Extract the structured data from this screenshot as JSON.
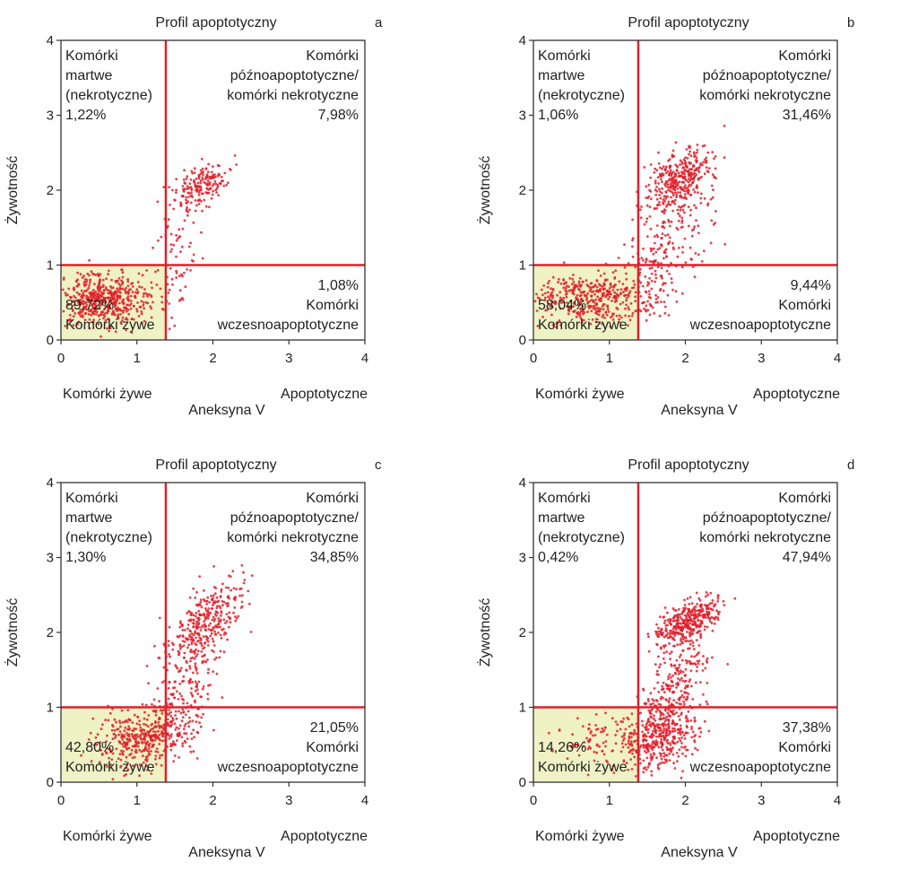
{
  "chart_data": [
    {
      "type": "scatter",
      "panel_label": "a",
      "title": "Profil apoptotyczny",
      "xlabel": "Aneksyna V",
      "ylabel": "Żywotność",
      "x_left_label": "Komórki żywe",
      "x_right_label": "Apoptotyczne",
      "xlim": [
        0,
        4
      ],
      "ylim": [
        0,
        4
      ],
      "xticks": [
        "0",
        "1",
        "2",
        "3",
        "4"
      ],
      "yticks": [
        "0",
        "1",
        "2",
        "3",
        "4"
      ],
      "gates": {
        "x": 1.38,
        "y": 1.0
      },
      "quadrants": {
        "top_left": {
          "label": [
            "Komórki",
            "martwe",
            "(nekrotyczne)"
          ],
          "percent": "1,22%"
        },
        "top_right": {
          "label": [
            "Komórki",
            "późnoapoptotyczne/",
            "komórki nekrotyczne"
          ],
          "percent": "7,98%"
        },
        "bottom_left": {
          "label": [
            "Komórki żywe"
          ],
          "percent": "89,72%"
        },
        "bottom_right": {
          "label": [
            "Komórki",
            "wczesnoapoptotyczne"
          ],
          "percent": "1,08%"
        }
      },
      "clusters": [
        {
          "cx": 0.55,
          "cy": 0.55,
          "sx": 0.32,
          "sy": 0.17,
          "n": 520,
          "rho": 0
        },
        {
          "cx": 1.85,
          "cy": 2.05,
          "sx": 0.18,
          "sy": 0.15,
          "n": 170,
          "rho": 0.5
        },
        {
          "cx": 1.5,
          "cy": 1.2,
          "sx": 0.15,
          "sy": 0.45,
          "n": 80,
          "rho": 0.3
        }
      ],
      "point_color": "#e0202a",
      "gate_color": "#e0202a",
      "live_region_color": "#eef2c4"
    },
    {
      "type": "scatter",
      "panel_label": "b",
      "title": "Profil apoptotyczny",
      "xlabel": "Aneksyna V",
      "ylabel": "Żywotność",
      "x_left_label": "Komórki żywe",
      "x_right_label": "Apoptotyczne",
      "xlim": [
        0,
        4
      ],
      "ylim": [
        0,
        4
      ],
      "xticks": [
        "0",
        "1",
        "2",
        "3",
        "4"
      ],
      "yticks": [
        "0",
        "1",
        "2",
        "3",
        "4"
      ],
      "gates": {
        "x": 1.38,
        "y": 1.0
      },
      "quadrants": {
        "top_left": {
          "label": [
            "Komórki",
            "martwe",
            "(nekrotyczne)"
          ],
          "percent": "1,06%"
        },
        "top_right": {
          "label": [
            "Komórki",
            "późnoapoptotyczne/",
            "komórki nekrotyczne"
          ],
          "percent": "31,46%"
        },
        "bottom_left": {
          "label": [
            "Komórki żywe"
          ],
          "percent": "58,04%"
        },
        "bottom_right": {
          "label": [
            "Komórki",
            "wczesnoapoptotyczne"
          ],
          "percent": "9,44%"
        }
      },
      "clusters": [
        {
          "cx": 0.75,
          "cy": 0.55,
          "sx": 0.4,
          "sy": 0.17,
          "n": 420,
          "rho": 0
        },
        {
          "cx": 1.9,
          "cy": 2.15,
          "sx": 0.22,
          "sy": 0.2,
          "n": 330,
          "rho": 0.4
        },
        {
          "cx": 1.75,
          "cy": 1.2,
          "sx": 0.3,
          "sy": 0.45,
          "n": 220,
          "rho": 0.6
        }
      ],
      "point_color": "#e0202a",
      "gate_color": "#e0202a",
      "live_region_color": "#eef2c4"
    },
    {
      "type": "scatter",
      "panel_label": "c",
      "title": "Profil apoptotyczny",
      "xlabel": "Aneksyna V",
      "ylabel": "Żywotność",
      "x_left_label": "Komórki żywe",
      "x_right_label": "Apoptotyczne",
      "xlim": [
        0,
        4
      ],
      "ylim": [
        0,
        4
      ],
      "xticks": [
        "0",
        "1",
        "2",
        "3",
        "4"
      ],
      "yticks": [
        "0",
        "1",
        "2",
        "3",
        "4"
      ],
      "gates": {
        "x": 1.38,
        "y": 1.0
      },
      "quadrants": {
        "top_left": {
          "label": [
            "Komórki",
            "martwe",
            "(nekrotyczne)"
          ],
          "percent": "1,30%"
        },
        "top_right": {
          "label": [
            "Komórki",
            "późnoapoptotyczne/",
            "komórki nekrotyczne"
          ],
          "percent": "34,85%"
        },
        "bottom_left": {
          "label": [
            "Komórki żywe"
          ],
          "percent": "42,80%"
        },
        "bottom_right": {
          "label": [
            "Komórki",
            "wczesnoapoptotyczne"
          ],
          "percent": "21,05%"
        }
      },
      "clusters": [
        {
          "cx": 1.1,
          "cy": 0.6,
          "sx": 0.3,
          "sy": 0.18,
          "n": 380,
          "rho": 0.2
        },
        {
          "cx": 1.9,
          "cy": 2.1,
          "sx": 0.25,
          "sy": 0.3,
          "n": 320,
          "rho": 0.6
        },
        {
          "cx": 1.6,
          "cy": 1.2,
          "sx": 0.22,
          "sy": 0.4,
          "n": 170,
          "rho": 0.5
        }
      ],
      "point_color": "#e0202a",
      "gate_color": "#e0202a",
      "live_region_color": "#eef2c4"
    },
    {
      "type": "scatter",
      "panel_label": "d",
      "title": "Profil apoptotyczny",
      "xlabel": "Aneksyna V",
      "ylabel": "Żywotność",
      "x_left_label": "Komórki żywe",
      "x_right_label": "Apoptotyczne",
      "xlim": [
        0,
        4
      ],
      "ylim": [
        0,
        4
      ],
      "xticks": [
        "0",
        "1",
        "2",
        "3",
        "4"
      ],
      "yticks": [
        "0",
        "1",
        "2",
        "3",
        "4"
      ],
      "gates": {
        "x": 1.38,
        "y": 1.0
      },
      "quadrants": {
        "top_left": {
          "label": [
            "Komórki",
            "martwe",
            "(nekrotyczne)"
          ],
          "percent": "0,42%"
        },
        "top_right": {
          "label": [
            "Komórki",
            "późnoapoptotyczne/",
            "komórki nekrotyczne"
          ],
          "percent": "47,94%"
        },
        "bottom_left": {
          "label": [
            "Komórki żywe"
          ],
          "percent": "14,26%"
        },
        "bottom_right": {
          "label": [
            "Komórki",
            "wczesnoapoptotyczne"
          ],
          "percent": "37,38%"
        }
      },
      "clusters": [
        {
          "cx": 1.7,
          "cy": 0.6,
          "sx": 0.25,
          "sy": 0.22,
          "n": 380,
          "rho": 0.3
        },
        {
          "cx": 2.05,
          "cy": 2.15,
          "sx": 0.2,
          "sy": 0.15,
          "n": 360,
          "rho": 0.6
        },
        {
          "cx": 1.85,
          "cy": 1.3,
          "sx": 0.25,
          "sy": 0.4,
          "n": 240,
          "rho": 0.7
        },
        {
          "cx": 0.9,
          "cy": 0.55,
          "sx": 0.3,
          "sy": 0.17,
          "n": 90,
          "rho": 0
        }
      ],
      "point_color": "#e0202a",
      "gate_color": "#e0202a",
      "live_region_color": "#eef2c4"
    }
  ]
}
